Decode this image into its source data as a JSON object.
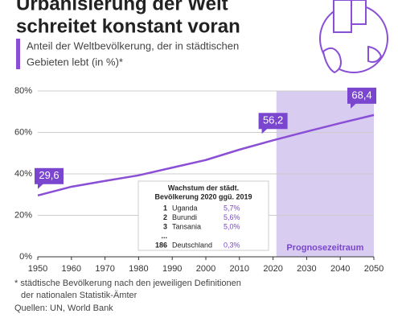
{
  "chart_data": {
    "type": "line",
    "title_lines": [
      "Urbanisierung der Welt",
      "schreitet konstant voran"
    ],
    "subtitle_lines": [
      "Anteil der Weltbevölkerung, der in städtischen",
      "Gebieten lebt (in %)*"
    ],
    "x": [
      1950,
      1960,
      1970,
      1980,
      1990,
      2000,
      2010,
      2020,
      2030,
      2040,
      2050
    ],
    "series": [
      {
        "color": "#8a4fd6",
        "values": [
          29.6,
          33.8,
          36.6,
          39.3,
          43.0,
          46.7,
          51.7,
          56.2,
          60.4,
          64.5,
          68.4
        ],
        "value_labels": [
          "29,6",
          null,
          null,
          null,
          null,
          null,
          null,
          "56,2",
          null,
          null,
          "68,4"
        ]
      }
    ],
    "xlim": [
      1950,
      2050
    ],
    "xticks": [
      1950,
      1960,
      1970,
      1980,
      1990,
      2000,
      2010,
      2020,
      2030,
      2040,
      2050
    ],
    "ylim": [
      0,
      80
    ],
    "yticks": [
      {
        "value": 0,
        "label": "0%"
      },
      {
        "value": 20,
        "label": "20%"
      },
      {
        "value": 40,
        "label": "40%"
      },
      {
        "value": 60,
        "label": "60%"
      },
      {
        "value": 80,
        "label": "80%"
      }
    ],
    "grid": true,
    "forecast": {
      "label": "Prognosezeitraum",
      "from": 2021,
      "to": 2050,
      "color": "#d9ccf1"
    },
    "table": {
      "title_lines": [
        "Wachstum der städt.",
        "Bevölkerung 2020 ggü. 2019"
      ],
      "rows": [
        [
          "1",
          "Uganda",
          "5,7%"
        ],
        [
          "2",
          "Burundi",
          "5,6%"
        ],
        [
          "3",
          "Tansania",
          "5,0%"
        ],
        [
          "...",
          "",
          ""
        ],
        [
          "186",
          "Deutschland",
          "0,3%"
        ]
      ]
    },
    "footnote_lines": [
      "* städtische Bevölkerung nach den jeweiligen Definitionen",
      "der nationalen Statistik-Ämter"
    ],
    "source": "Quellen: UN, World Bank"
  }
}
